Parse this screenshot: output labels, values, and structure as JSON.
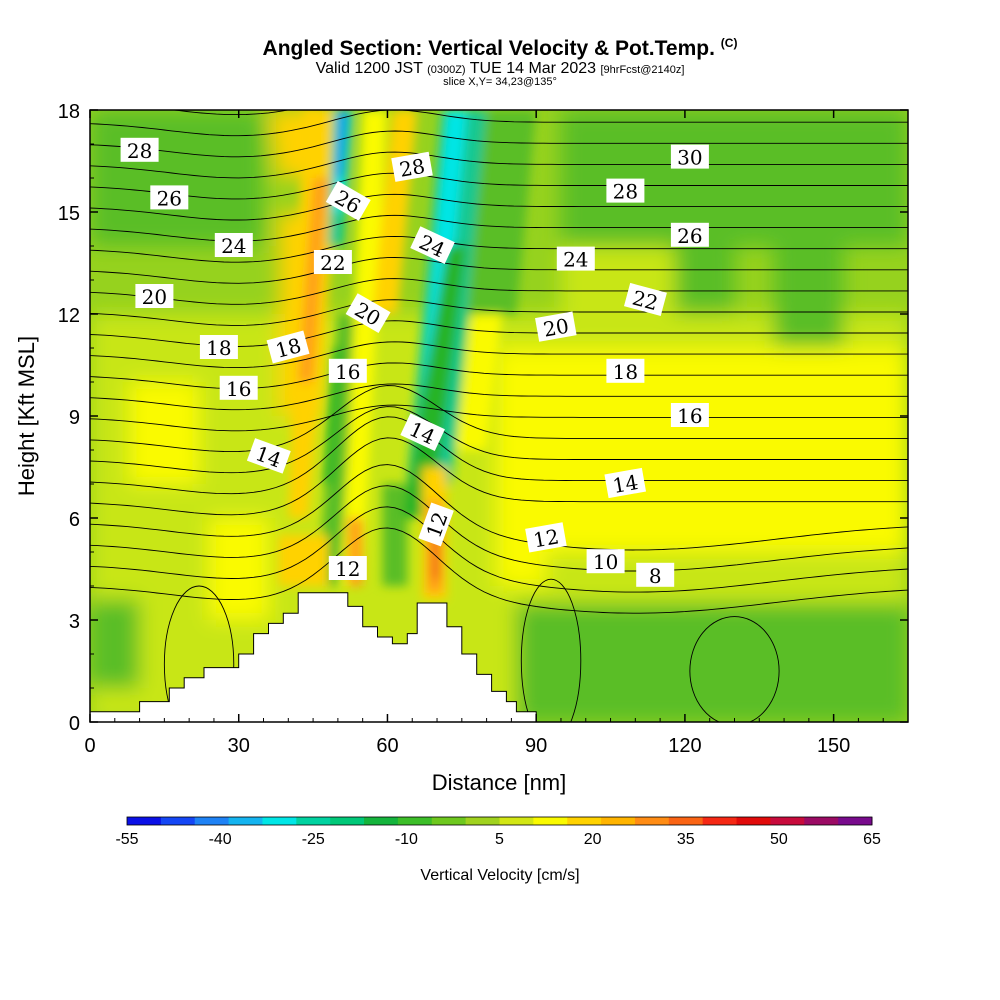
{
  "header": {
    "title": "Angled Section: Vertical Velocity & Pot.Temp.",
    "title_tag": "(C)",
    "valid_prefix": "Valid 1200 JST",
    "valid_utc": "(0300Z)",
    "valid_date": "TUE 14 Mar 2023",
    "forecast": "[9hrFcst@2140z]",
    "slice": "slice X,Y= 34,23@135°"
  },
  "chart_data": {
    "type": "heatmap",
    "xlabel": "Distance [nm]",
    "ylabel": "Height [Kft MSL]",
    "xlim": [
      0,
      165
    ],
    "ylim": [
      0,
      18
    ],
    "x_ticks": [
      0,
      30,
      60,
      90,
      120,
      150
    ],
    "y_ticks": [
      0,
      3,
      6,
      9,
      12,
      15,
      18
    ],
    "terrain": [
      [
        0,
        0.3
      ],
      [
        10,
        0.3
      ],
      [
        10,
        0.6
      ],
      [
        16,
        0.6
      ],
      [
        16,
        1.0
      ],
      [
        19,
        1.0
      ],
      [
        19,
        1.3
      ],
      [
        23,
        1.3
      ],
      [
        23,
        1.6
      ],
      [
        30,
        1.6
      ],
      [
        30,
        2.0
      ],
      [
        33,
        2.0
      ],
      [
        33,
        2.6
      ],
      [
        36,
        2.6
      ],
      [
        36,
        2.9
      ],
      [
        39,
        2.9
      ],
      [
        39,
        3.2
      ],
      [
        42,
        3.2
      ],
      [
        42,
        3.8
      ],
      [
        52,
        3.8
      ],
      [
        52,
        3.4
      ],
      [
        55,
        3.4
      ],
      [
        55,
        2.8
      ],
      [
        58,
        2.8
      ],
      [
        58,
        2.5
      ],
      [
        61,
        2.5
      ],
      [
        61,
        2.3
      ],
      [
        64,
        2.3
      ],
      [
        64,
        2.6
      ],
      [
        66,
        2.6
      ],
      [
        66,
        3.0
      ],
      [
        66,
        3.5
      ],
      [
        72,
        3.5
      ],
      [
        72,
        2.8
      ],
      [
        75,
        2.8
      ],
      [
        75,
        2.0
      ],
      [
        78,
        2.0
      ],
      [
        78,
        1.4
      ],
      [
        81,
        1.4
      ],
      [
        81,
        0.9
      ],
      [
        84,
        0.9
      ],
      [
        84,
        0.6
      ],
      [
        86,
        0.6
      ],
      [
        86,
        0.3
      ],
      [
        90,
        0.3
      ],
      [
        90,
        0
      ],
      [
        0,
        0
      ]
    ],
    "isentrope_labels": [
      {
        "text": "28",
        "x": 10,
        "y": 16.8,
        "rot": 0
      },
      {
        "text": "26",
        "x": 16,
        "y": 15.4,
        "rot": 0
      },
      {
        "text": "24",
        "x": 29,
        "y": 14.0,
        "rot": 0
      },
      {
        "text": "20",
        "x": 13,
        "y": 12.5,
        "rot": 0
      },
      {
        "text": "18",
        "x": 26,
        "y": 11.0,
        "rot": 0
      },
      {
        "text": "18",
        "x": 40,
        "y": 11.0,
        "rot": -15
      },
      {
        "text": "16",
        "x": 30,
        "y": 9.8,
        "rot": 0
      },
      {
        "text": "14",
        "x": 36,
        "y": 7.8,
        "rot": 20
      },
      {
        "text": "26",
        "x": 52,
        "y": 15.3,
        "rot": 30
      },
      {
        "text": "22",
        "x": 49,
        "y": 13.5,
        "rot": 0
      },
      {
        "text": "20",
        "x": 56,
        "y": 12.0,
        "rot": 30
      },
      {
        "text": "16",
        "x": 52,
        "y": 10.3,
        "rot": 0
      },
      {
        "text": "28",
        "x": 65,
        "y": 16.3,
        "rot": -10
      },
      {
        "text": "24",
        "x": 69,
        "y": 14.0,
        "rot": 25
      },
      {
        "text": "14",
        "x": 67,
        "y": 8.5,
        "rot": 25
      },
      {
        "text": "12",
        "x": 70,
        "y": 5.8,
        "rot": -70
      },
      {
        "text": "12",
        "x": 52,
        "y": 4.5,
        "rot": 0
      },
      {
        "text": "24",
        "x": 98,
        "y": 13.6,
        "rot": 0
      },
      {
        "text": "20",
        "x": 94,
        "y": 11.6,
        "rot": -10
      },
      {
        "text": "28",
        "x": 108,
        "y": 15.6,
        "rot": 0
      },
      {
        "text": "30",
        "x": 121,
        "y": 16.6,
        "rot": 0
      },
      {
        "text": "26",
        "x": 121,
        "y": 14.3,
        "rot": 0
      },
      {
        "text": "22",
        "x": 112,
        "y": 12.4,
        "rot": 15
      },
      {
        "text": "18",
        "x": 108,
        "y": 10.3,
        "rot": 0
      },
      {
        "text": "16",
        "x": 121,
        "y": 9.0,
        "rot": 0
      },
      {
        "text": "14",
        "x": 108,
        "y": 7.0,
        "rot": -10
      },
      {
        "text": "12",
        "x": 92,
        "y": 5.4,
        "rot": -10
      },
      {
        "text": "10",
        "x": 104,
        "y": 4.7,
        "rot": 0
      },
      {
        "text": "8",
        "x": 114,
        "y": 4.3,
        "rot": 0
      }
    ]
  },
  "colorbar": {
    "label": "Vertical Velocity [cm/s]",
    "tick_labels": [
      "-55",
      "-40",
      "-25",
      "-10",
      "5",
      "20",
      "35",
      "50",
      "65"
    ],
    "colors": [
      "#0a10e6",
      "#1446f5",
      "#1e82f5",
      "#14b4f0",
      "#00e6e6",
      "#00d2a0",
      "#00c878",
      "#14b43c",
      "#3cbe28",
      "#6ec81e",
      "#a0d21e",
      "#d2e614",
      "#fafa00",
      "#ffd200",
      "#ffb400",
      "#ff8c14",
      "#fa6414",
      "#f52814",
      "#e10a0a",
      "#c80a3c",
      "#9b0a64",
      "#780a8c"
    ]
  },
  "field_colors": {
    "deep_blue": "#1466f0",
    "cyan": "#00e6e6",
    "teal": "#14c890",
    "dark_green": "#28b428",
    "green": "#5abe28",
    "light_green": "#96d21e",
    "yellow_green": "#c8e614",
    "yellow": "#fafa00",
    "gold": "#ffd200",
    "orange": "#ffa014",
    "red_orange": "#f06414"
  }
}
